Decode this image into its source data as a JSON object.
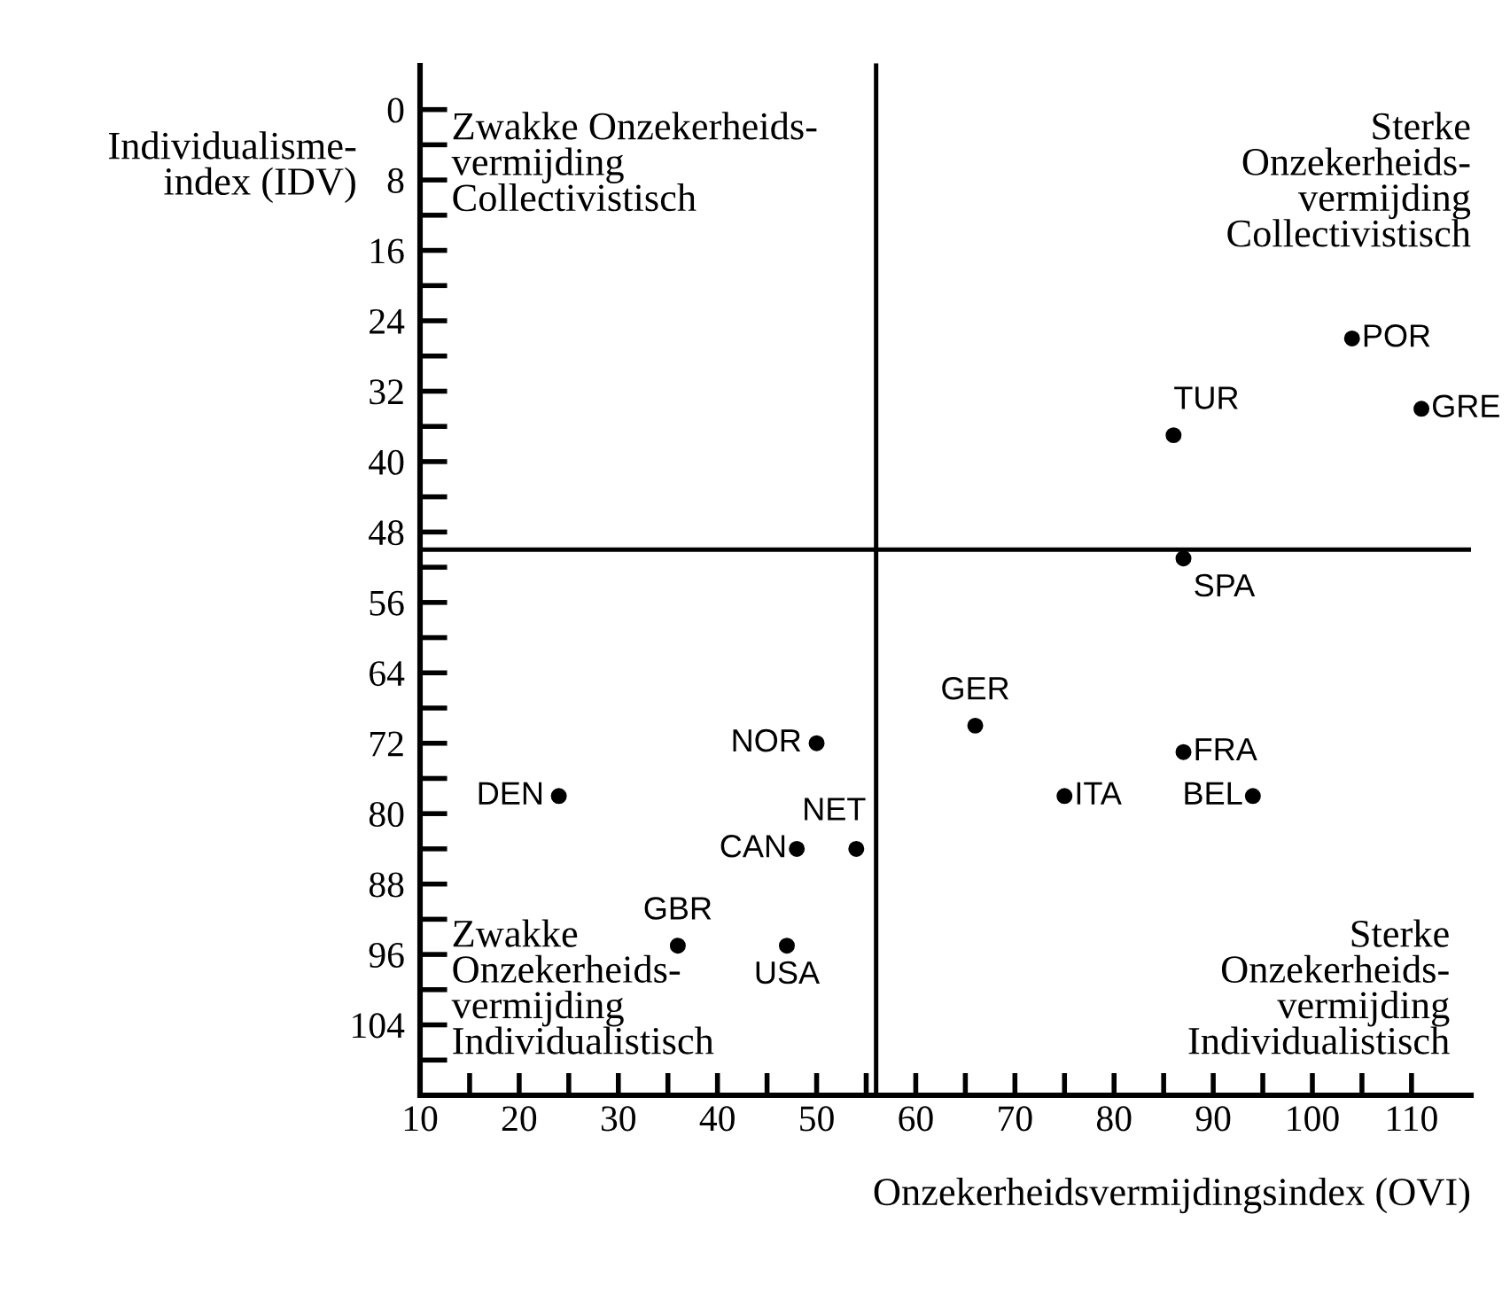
{
  "chart_data": {
    "type": "scatter",
    "xlabel": "Onzekerheidsvermijdingsindex (OVI)",
    "ylabel": "Individualisme-\nindex (IDV)",
    "x": [
      104,
      111,
      86,
      87,
      66,
      87,
      75,
      94,
      50,
      54,
      48,
      47,
      24,
      36
    ],
    "values": [
      26,
      34,
      37,
      51,
      70,
      73,
      78,
      78,
      72,
      84,
      84,
      95,
      78,
      95
    ],
    "color": "#000000",
    "marker": "circle",
    "grid": false,
    "xlim": [
      10,
      116
    ],
    "ylim": [
      112,
      -5
    ],
    "xticks": [
      10,
      {
        "value": 15,
        "label": null
      },
      20,
      {
        "value": 25,
        "label": null
      },
      30,
      {
        "value": 35,
        "label": null
      },
      40,
      {
        "value": 45,
        "label": null
      },
      50,
      {
        "value": 55,
        "label": null
      },
      60,
      {
        "value": 65,
        "label": null
      },
      70,
      {
        "value": 75,
        "label": null
      },
      80,
      {
        "value": 85,
        "label": null
      },
      90,
      {
        "value": 95,
        "label": null
      },
      100,
      {
        "value": 105,
        "label": null
      },
      110
    ],
    "yticks": [
      0,
      {
        "value": 4,
        "label": null
      },
      8,
      {
        "value": 12,
        "label": null
      },
      16,
      {
        "value": 20,
        "label": null
      },
      24,
      {
        "value": 28,
        "label": null
      },
      32,
      {
        "value": 36,
        "label": null
      },
      40,
      {
        "value": 44,
        "label": null
      },
      48,
      {
        "value": 52,
        "label": null
      },
      56,
      {
        "value": 60,
        "label": null
      },
      64,
      {
        "value": 68,
        "label": null
      },
      72,
      {
        "value": 76,
        "label": null
      },
      80,
      {
        "value": 84,
        "label": null
      },
      88,
      {
        "value": 92,
        "label": null
      },
      96,
      {
        "value": 100,
        "label": null
      },
      104,
      {
        "value": 108,
        "label": null
      },
      {
        "value": 112,
        "label": null
      }
    ],
    "ref_lines": [
      {
        "axis": "x",
        "value": 56,
        "color": "#000000"
      },
      {
        "axis": "y",
        "value": 50,
        "color": "#000000"
      }
    ],
    "annotations": [
      "Zwakke Onzekerheids-\nvermijding\nCollectivistisch",
      "Sterke\nOnzekerheids-\nvermijding\nCollectivistisch",
      "Zwakke\nOnzekerheids-\nvermijding\nIndividualistisch",
      "Sterke\nOnzekerheids-\nvermijding\nIndividualistisch",
      {
        "text": "POR",
        "x": 104,
        "y": 26
      },
      {
        "text": "GRE",
        "x": 111,
        "y": 34
      },
      {
        "text": "TUR",
        "x": 86,
        "y": 37
      },
      {
        "text": "SPA",
        "x": 87,
        "y": 51
      },
      {
        "text": "GER",
        "x": 66,
        "y": 70
      },
      {
        "text": "FRA",
        "x": 87,
        "y": 73
      },
      {
        "text": "ITA",
        "x": 75,
        "y": 78
      },
      {
        "text": "BEL",
        "x": 94,
        "y": 78
      },
      {
        "text": "NOR",
        "x": 50,
        "y": 72
      },
      {
        "text": "NET",
        "x": 54,
        "y": 84
      },
      {
        "text": "CAN",
        "x": 48,
        "y": 84
      },
      {
        "text": "USA",
        "x": 47,
        "y": 95
      },
      {
        "text": "DEN",
        "x": 24,
        "y": 78
      },
      {
        "text": "GBR",
        "x": 36,
        "y": 95
      }
    ]
  }
}
